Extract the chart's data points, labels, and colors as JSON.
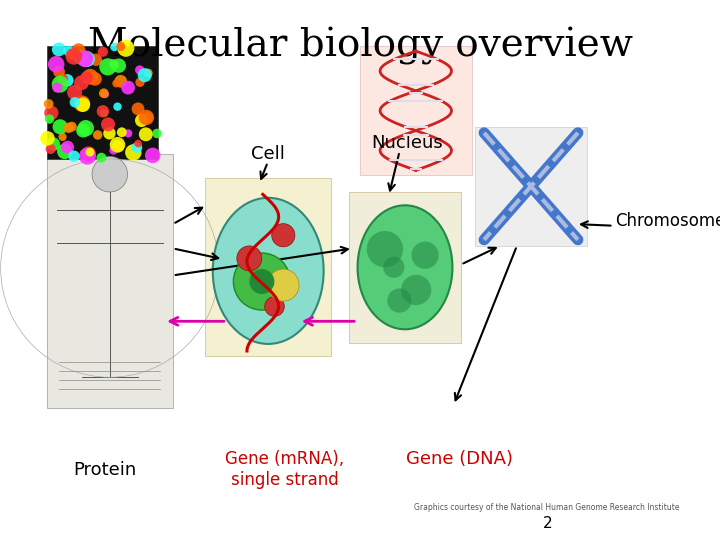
{
  "title": "Molecular biology overview",
  "title_fontsize": 28,
  "title_font": "DejaVu Serif",
  "bg_color": "#ffffff",
  "labels": {
    "cell": "Cell",
    "nucleus": "Nucleus",
    "chromosome": "Chromosome",
    "protein": "Protein",
    "mrna": "Gene (mRNA),\nsingle strand",
    "dna": "Gene (DNA)",
    "credit": "Graphics courtesy of the National Human Genome Research Institute",
    "page": "2"
  },
  "label_colors": {
    "cell": "#000000",
    "nucleus": "#000000",
    "chromosome": "#000000",
    "protein": "#000000",
    "mrna": "#cc0000",
    "dna": "#cc0000",
    "credit": "#555555",
    "page": "#000000"
  },
  "layout": {
    "vitruvian": [
      0.065,
      0.285,
      0.175,
      0.47
    ],
    "cell": [
      0.285,
      0.33,
      0.175,
      0.33
    ],
    "nucleus": [
      0.485,
      0.355,
      0.155,
      0.28
    ],
    "chromosome": [
      0.66,
      0.235,
      0.155,
      0.22
    ],
    "protein": [
      0.065,
      0.085,
      0.155,
      0.21
    ],
    "dna": [
      0.5,
      0.085,
      0.155,
      0.24
    ]
  }
}
